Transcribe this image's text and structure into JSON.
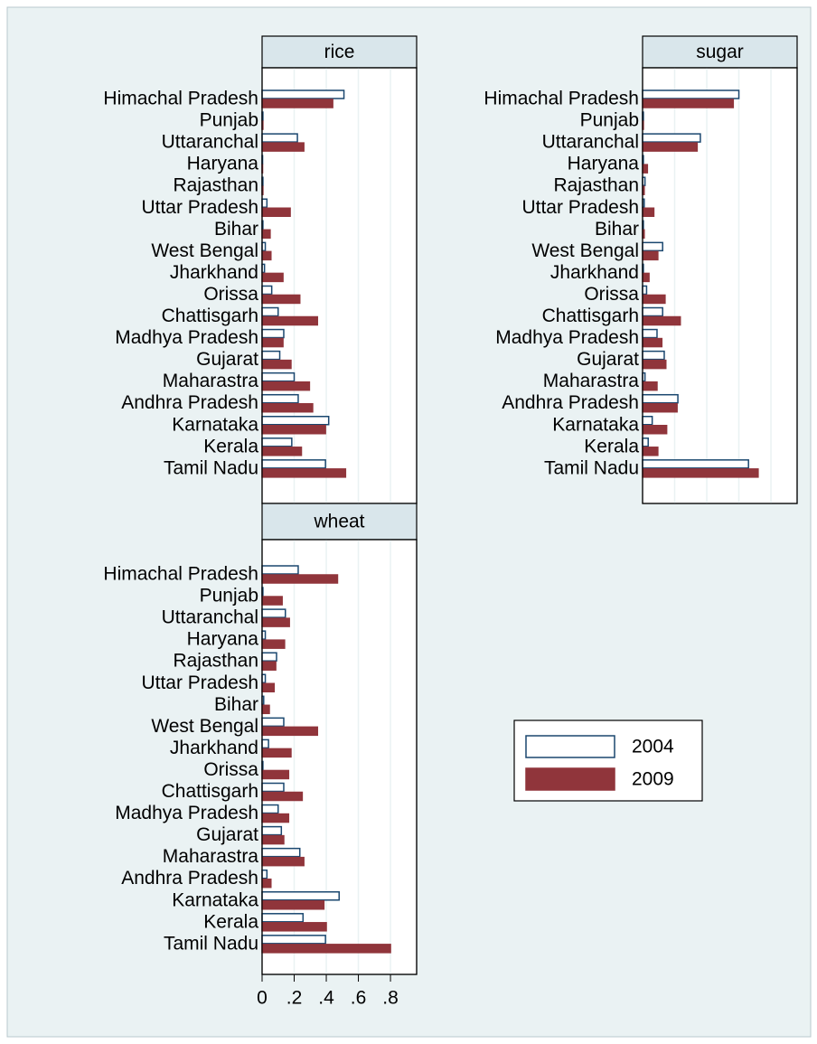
{
  "chart_data": [
    {
      "type": "hbar",
      "title": "rice",
      "categories": [
        "Himachal Pradesh",
        "Punjab",
        "Uttaranchal",
        "Haryana",
        "Rajasthan",
        "Uttar Pradesh",
        "Bihar",
        "West Bengal",
        "Jharkhand",
        "Orissa",
        "Chattisgarh",
        "Madhya Pradesh",
        "Gujarat",
        "Maharastra",
        "Andhra Pradesh",
        "Karnataka",
        "Kerala",
        "Tamil Nadu"
      ],
      "series": [
        {
          "name": "2004",
          "color": "#ffffff",
          "edge": "#1a476f",
          "values": [
            0.51,
            0.005,
            0.22,
            0.003,
            0.005,
            0.03,
            0.005,
            0.02,
            0.015,
            0.06,
            0.1,
            0.135,
            0.11,
            0.2,
            0.225,
            0.415,
            0.185,
            0.395
          ]
        },
        {
          "name": "2009",
          "color": "#90353b",
          "edge": "#90353b",
          "values": [
            0.44,
            0.005,
            0.26,
            0.003,
            0.005,
            0.175,
            0.05,
            0.055,
            0.13,
            0.235,
            0.345,
            0.13,
            0.18,
            0.295,
            0.315,
            0.395,
            0.245,
            0.52
          ]
        }
      ],
      "xlim": [
        0,
        0.963
      ],
      "xticks": [
        0,
        {
          "value": 0.2,
          "label": ".2"
        },
        {
          "value": 0.4,
          "label": ".4"
        },
        {
          "value": 0.6,
          "label": ".6"
        },
        {
          "value": 0.8,
          "label": ".8"
        }
      ],
      "grid": true,
      "tick_labels": false
    },
    {
      "type": "hbar",
      "title": "sugar",
      "categories": [
        "Himachal Pradesh",
        "Punjab",
        "Uttaranchal",
        "Haryana",
        "Rajasthan",
        "Uttar Pradesh",
        "Bihar",
        "West Bengal",
        "Jharkhand",
        "Orissa",
        "Chattisgarh",
        "Madhya Pradesh",
        "Gujarat",
        "Maharastra",
        "Andhra Pradesh",
        "Karnataka",
        "Kerala",
        "Tamil Nadu"
      ],
      "series": [
        {
          "name": "2004",
          "color": "#ffffff",
          "edge": "#1a476f",
          "values": [
            0.6,
            0.005,
            0.36,
            0.005,
            0.015,
            0.01,
            0.005,
            0.125,
            0.005,
            0.025,
            0.125,
            0.09,
            0.135,
            0.015,
            0.22,
            0.06,
            0.035,
            0.66
          ]
        },
        {
          "name": "2009",
          "color": "#90353b",
          "edge": "#90353b",
          "values": [
            0.565,
            0.005,
            0.34,
            0.03,
            0.01,
            0.07,
            0.01,
            0.095,
            0.04,
            0.14,
            0.235,
            0.12,
            0.145,
            0.09,
            0.215,
            0.15,
            0.095,
            0.72
          ]
        }
      ],
      "xlim": [
        0,
        0.963
      ],
      "xticks": [
        0,
        {
          "value": 0.2,
          "label": ".2"
        },
        {
          "value": 0.4,
          "label": ".4"
        },
        {
          "value": 0.6,
          "label": ".6"
        },
        {
          "value": 0.8,
          "label": ".8"
        }
      ],
      "grid": true,
      "tick_labels": false
    },
    {
      "type": "hbar",
      "title": "wheat",
      "categories": [
        "Himachal Pradesh",
        "Punjab",
        "Uttaranchal",
        "Haryana",
        "Rajasthan",
        "Uttar Pradesh",
        "Bihar",
        "West Bengal",
        "Jharkhand",
        "Orissa",
        "Chattisgarh",
        "Madhya Pradesh",
        "Gujarat",
        "Maharastra",
        "Andhra Pradesh",
        "Karnataka",
        "Kerala",
        "Tamil Nadu"
      ],
      "series": [
        {
          "name": "2004",
          "color": "#ffffff",
          "edge": "#1a476f",
          "values": [
            0.225,
            0.005,
            0.145,
            0.02,
            0.09,
            0.02,
            0.01,
            0.135,
            0.04,
            0.005,
            0.135,
            0.1,
            0.12,
            0.235,
            0.03,
            0.48,
            0.255,
            0.395
          ]
        },
        {
          "name": "2009",
          "color": "#90353b",
          "edge": "#90353b",
          "values": [
            0.47,
            0.125,
            0.17,
            0.14,
            0.085,
            0.075,
            0.045,
            0.345,
            0.18,
            0.165,
            0.25,
            0.165,
            0.135,
            0.26,
            0.055,
            0.385,
            0.4,
            0.8
          ]
        }
      ],
      "xlim": [
        0,
        0.963
      ],
      "xticks": [
        0,
        {
          "value": 0.2,
          "label": ".2"
        },
        {
          "value": 0.4,
          "label": ".4"
        },
        {
          "value": 0.6,
          "label": ".6"
        },
        {
          "value": 0.8,
          "label": ".8"
        }
      ],
      "grid": true,
      "tick_labels": true
    }
  ]
}
